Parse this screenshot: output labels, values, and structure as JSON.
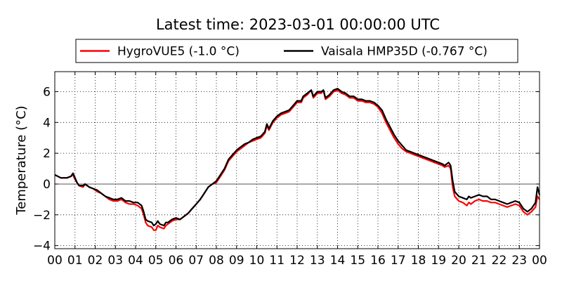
{
  "chart_data": {
    "type": "line",
    "title": "Latest time: 2023-03-01 00:00:00 UTC",
    "ylabel": "Temperature (°C)",
    "xlabel": "",
    "xlim": [
      0,
      24
    ],
    "ylim": [
      -4.2,
      7.3
    ],
    "x_ticks": [
      "00",
      "01",
      "02",
      "03",
      "04",
      "05",
      "06",
      "07",
      "08",
      "09",
      "10",
      "11",
      "12",
      "13",
      "14",
      "15",
      "16",
      "17",
      "18",
      "19",
      "20",
      "21",
      "22",
      "23",
      "00"
    ],
    "y_ticks": [
      -4,
      -2,
      0,
      2,
      4,
      6
    ],
    "grid": true,
    "grid_style": "dotted",
    "zero_line": true,
    "legend_position": "top-center",
    "x_unit": "hour (UTC)",
    "series": [
      {
        "name": "HygroVUE5 (-1.0 °C)",
        "color": "#ff0000",
        "points": [
          [
            0,
            0.6
          ],
          [
            0.3,
            0.4
          ],
          [
            0.6,
            0.4
          ],
          [
            0.8,
            0.5
          ],
          [
            0.9,
            0.6
          ],
          [
            1.0,
            0.3
          ],
          [
            1.1,
            0.1
          ],
          [
            1.2,
            -0.1
          ],
          [
            1.4,
            -0.2
          ],
          [
            1.5,
            0.0
          ],
          [
            1.7,
            -0.2
          ],
          [
            1.9,
            -0.3
          ],
          [
            2.1,
            -0.5
          ],
          [
            2.3,
            -0.6
          ],
          [
            2.5,
            -0.8
          ],
          [
            2.7,
            -1.0
          ],
          [
            2.9,
            -1.1
          ],
          [
            3.1,
            -1.1
          ],
          [
            3.3,
            -1.0
          ],
          [
            3.5,
            -1.2
          ],
          [
            3.7,
            -1.3
          ],
          [
            3.9,
            -1.3
          ],
          [
            4.1,
            -1.4
          ],
          [
            4.3,
            -1.6
          ],
          [
            4.4,
            -2.0
          ],
          [
            4.5,
            -2.5
          ],
          [
            4.6,
            -2.7
          ],
          [
            4.8,
            -2.8
          ],
          [
            4.9,
            -3.0
          ],
          [
            5.0,
            -3.0
          ],
          [
            5.1,
            -2.7
          ],
          [
            5.2,
            -2.8
          ],
          [
            5.4,
            -2.9
          ],
          [
            5.5,
            -2.7
          ],
          [
            5.6,
            -2.6
          ],
          [
            5.8,
            -2.4
          ],
          [
            6.0,
            -2.3
          ],
          [
            6.2,
            -2.3
          ],
          [
            6.4,
            -2.1
          ],
          [
            6.6,
            -1.9
          ],
          [
            6.8,
            -1.6
          ],
          [
            7.0,
            -1.3
          ],
          [
            7.2,
            -1.0
          ],
          [
            7.4,
            -0.6
          ],
          [
            7.6,
            -0.2
          ],
          [
            7.8,
            0.0
          ],
          [
            8.0,
            0.1
          ],
          [
            8.2,
            0.5
          ],
          [
            8.4,
            0.9
          ],
          [
            8.6,
            1.5
          ],
          [
            8.8,
            1.8
          ],
          [
            9.0,
            2.1
          ],
          [
            9.2,
            2.3
          ],
          [
            9.4,
            2.5
          ],
          [
            9.6,
            2.7
          ],
          [
            9.8,
            2.8
          ],
          [
            10.0,
            2.9
          ],
          [
            10.2,
            3.0
          ],
          [
            10.4,
            3.3
          ],
          [
            10.5,
            3.8
          ],
          [
            10.6,
            3.5
          ],
          [
            10.8,
            4.0
          ],
          [
            11.0,
            4.3
          ],
          [
            11.2,
            4.5
          ],
          [
            11.4,
            4.6
          ],
          [
            11.6,
            4.7
          ],
          [
            11.8,
            5.0
          ],
          [
            12.0,
            5.3
          ],
          [
            12.2,
            5.3
          ],
          [
            12.3,
            5.6
          ],
          [
            12.5,
            5.8
          ],
          [
            12.7,
            6.1
          ],
          [
            12.8,
            5.6
          ],
          [
            13.0,
            5.9
          ],
          [
            13.2,
            5.9
          ],
          [
            13.3,
            6.1
          ],
          [
            13.4,
            5.5
          ],
          [
            13.6,
            5.7
          ],
          [
            13.8,
            6.0
          ],
          [
            14.0,
            6.1
          ],
          [
            14.2,
            5.9
          ],
          [
            14.4,
            5.8
          ],
          [
            14.6,
            5.6
          ],
          [
            14.8,
            5.6
          ],
          [
            15.0,
            5.4
          ],
          [
            15.2,
            5.4
          ],
          [
            15.4,
            5.3
          ],
          [
            15.6,
            5.3
          ],
          [
            15.8,
            5.2
          ],
          [
            16.0,
            5.0
          ],
          [
            16.2,
            4.6
          ],
          [
            16.4,
            4.0
          ],
          [
            16.6,
            3.5
          ],
          [
            16.8,
            3.0
          ],
          [
            17.0,
            2.6
          ],
          [
            17.2,
            2.3
          ],
          [
            17.4,
            2.1
          ],
          [
            17.6,
            2.0
          ],
          [
            17.8,
            1.9
          ],
          [
            18.0,
            1.8
          ],
          [
            18.2,
            1.7
          ],
          [
            18.4,
            1.6
          ],
          [
            18.6,
            1.5
          ],
          [
            18.8,
            1.4
          ],
          [
            19.0,
            1.3
          ],
          [
            19.2,
            1.2
          ],
          [
            19.3,
            1.1
          ],
          [
            19.5,
            1.2
          ],
          [
            19.6,
            1.0
          ],
          [
            19.7,
            -0.2
          ],
          [
            19.8,
            -0.8
          ],
          [
            20.0,
            -1.1
          ],
          [
            20.2,
            -1.2
          ],
          [
            20.4,
            -1.4
          ],
          [
            20.5,
            -1.2
          ],
          [
            20.6,
            -1.3
          ],
          [
            20.8,
            -1.1
          ],
          [
            21.0,
            -1.0
          ],
          [
            21.2,
            -1.1
          ],
          [
            21.4,
            -1.1
          ],
          [
            21.6,
            -1.2
          ],
          [
            21.8,
            -1.2
          ],
          [
            22.0,
            -1.3
          ],
          [
            22.2,
            -1.4
          ],
          [
            22.4,
            -1.5
          ],
          [
            22.6,
            -1.4
          ],
          [
            22.8,
            -1.3
          ],
          [
            23.0,
            -1.4
          ],
          [
            23.2,
            -1.8
          ],
          [
            23.4,
            -2.0
          ],
          [
            23.6,
            -1.8
          ],
          [
            23.8,
            -1.5
          ],
          [
            23.9,
            -0.8
          ],
          [
            24.0,
            -1.0
          ]
        ]
      },
      {
        "name": "Vaisala HMP35D (-0.767 °C)",
        "color": "#000000",
        "points": [
          [
            0,
            0.6
          ],
          [
            0.3,
            0.4
          ],
          [
            0.6,
            0.4
          ],
          [
            0.8,
            0.5
          ],
          [
            0.9,
            0.7
          ],
          [
            1.0,
            0.4
          ],
          [
            1.1,
            0.1
          ],
          [
            1.2,
            -0.1
          ],
          [
            1.4,
            -0.1
          ],
          [
            1.5,
            0.0
          ],
          [
            1.7,
            -0.2
          ],
          [
            1.9,
            -0.3
          ],
          [
            2.1,
            -0.4
          ],
          [
            2.3,
            -0.6
          ],
          [
            2.5,
            -0.8
          ],
          [
            2.7,
            -0.9
          ],
          [
            2.9,
            -1.0
          ],
          [
            3.1,
            -1.0
          ],
          [
            3.3,
            -0.9
          ],
          [
            3.5,
            -1.1
          ],
          [
            3.7,
            -1.1
          ],
          [
            3.9,
            -1.2
          ],
          [
            4.1,
            -1.2
          ],
          [
            4.3,
            -1.4
          ],
          [
            4.4,
            -1.8
          ],
          [
            4.5,
            -2.3
          ],
          [
            4.6,
            -2.4
          ],
          [
            4.8,
            -2.5
          ],
          [
            4.9,
            -2.7
          ],
          [
            5.0,
            -2.6
          ],
          [
            5.1,
            -2.4
          ],
          [
            5.2,
            -2.6
          ],
          [
            5.4,
            -2.7
          ],
          [
            5.5,
            -2.5
          ],
          [
            5.6,
            -2.5
          ],
          [
            5.8,
            -2.3
          ],
          [
            6.0,
            -2.2
          ],
          [
            6.2,
            -2.3
          ],
          [
            6.4,
            -2.1
          ],
          [
            6.6,
            -1.9
          ],
          [
            6.8,
            -1.6
          ],
          [
            7.0,
            -1.3
          ],
          [
            7.2,
            -1.0
          ],
          [
            7.4,
            -0.6
          ],
          [
            7.6,
            -0.2
          ],
          [
            7.8,
            0.0
          ],
          [
            8.0,
            0.2
          ],
          [
            8.2,
            0.6
          ],
          [
            8.4,
            1.0
          ],
          [
            8.6,
            1.6
          ],
          [
            8.8,
            1.9
          ],
          [
            9.0,
            2.2
          ],
          [
            9.2,
            2.4
          ],
          [
            9.4,
            2.6
          ],
          [
            9.6,
            2.7
          ],
          [
            9.8,
            2.9
          ],
          [
            10.0,
            3.0
          ],
          [
            10.2,
            3.1
          ],
          [
            10.4,
            3.4
          ],
          [
            10.5,
            3.9
          ],
          [
            10.6,
            3.6
          ],
          [
            10.8,
            4.1
          ],
          [
            11.0,
            4.4
          ],
          [
            11.2,
            4.6
          ],
          [
            11.4,
            4.7
          ],
          [
            11.6,
            4.8
          ],
          [
            11.8,
            5.1
          ],
          [
            12.0,
            5.4
          ],
          [
            12.2,
            5.4
          ],
          [
            12.3,
            5.7
          ],
          [
            12.5,
            5.9
          ],
          [
            12.7,
            6.1
          ],
          [
            12.8,
            5.7
          ],
          [
            13.0,
            6.0
          ],
          [
            13.2,
            6.0
          ],
          [
            13.3,
            6.1
          ],
          [
            13.4,
            5.6
          ],
          [
            13.6,
            5.8
          ],
          [
            13.8,
            6.1
          ],
          [
            14.0,
            6.2
          ],
          [
            14.2,
            6.0
          ],
          [
            14.4,
            5.9
          ],
          [
            14.6,
            5.7
          ],
          [
            14.8,
            5.7
          ],
          [
            15.0,
            5.5
          ],
          [
            15.2,
            5.5
          ],
          [
            15.4,
            5.4
          ],
          [
            15.6,
            5.4
          ],
          [
            15.8,
            5.3
          ],
          [
            16.0,
            5.1
          ],
          [
            16.2,
            4.8
          ],
          [
            16.4,
            4.2
          ],
          [
            16.6,
            3.7
          ],
          [
            16.8,
            3.2
          ],
          [
            17.0,
            2.8
          ],
          [
            17.2,
            2.5
          ],
          [
            17.4,
            2.2
          ],
          [
            17.6,
            2.1
          ],
          [
            17.8,
            2.0
          ],
          [
            18.0,
            1.9
          ],
          [
            18.2,
            1.8
          ],
          [
            18.4,
            1.7
          ],
          [
            18.6,
            1.6
          ],
          [
            18.8,
            1.5
          ],
          [
            19.0,
            1.4
          ],
          [
            19.2,
            1.3
          ],
          [
            19.3,
            1.2
          ],
          [
            19.5,
            1.4
          ],
          [
            19.6,
            1.2
          ],
          [
            19.7,
            0.2
          ],
          [
            19.8,
            -0.5
          ],
          [
            20.0,
            -0.8
          ],
          [
            20.2,
            -0.9
          ],
          [
            20.4,
            -1.0
          ],
          [
            20.5,
            -0.8
          ],
          [
            20.6,
            -0.9
          ],
          [
            20.8,
            -0.8
          ],
          [
            21.0,
            -0.7
          ],
          [
            21.2,
            -0.8
          ],
          [
            21.4,
            -0.8
          ],
          [
            21.6,
            -1.0
          ],
          [
            21.8,
            -1.0
          ],
          [
            22.0,
            -1.1
          ],
          [
            22.2,
            -1.2
          ],
          [
            22.4,
            -1.3
          ],
          [
            22.6,
            -1.2
          ],
          [
            22.8,
            -1.1
          ],
          [
            23.0,
            -1.2
          ],
          [
            23.2,
            -1.6
          ],
          [
            23.4,
            -1.8
          ],
          [
            23.6,
            -1.6
          ],
          [
            23.8,
            -1.2
          ],
          [
            23.9,
            -0.2
          ],
          [
            24.0,
            -0.7
          ]
        ]
      }
    ]
  }
}
